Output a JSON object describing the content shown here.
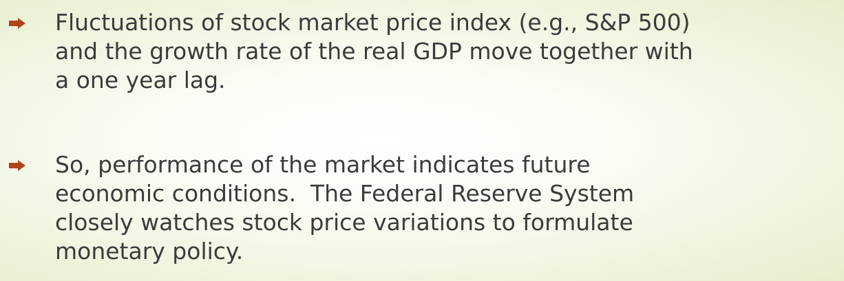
{
  "bullets": [
    {
      "lines": [
        "Fluctuations of stock market price index (e.g., S&P 500)",
        "and the growth rate of the real GDP move together with",
        "a one year lag."
      ]
    },
    {
      "lines": [
        "So, performance of the market indicates future",
        "economic conditions.  The Federal Reserve System",
        "closely watches stock price variations to formulate",
        "monetary policy."
      ]
    }
  ]
}
